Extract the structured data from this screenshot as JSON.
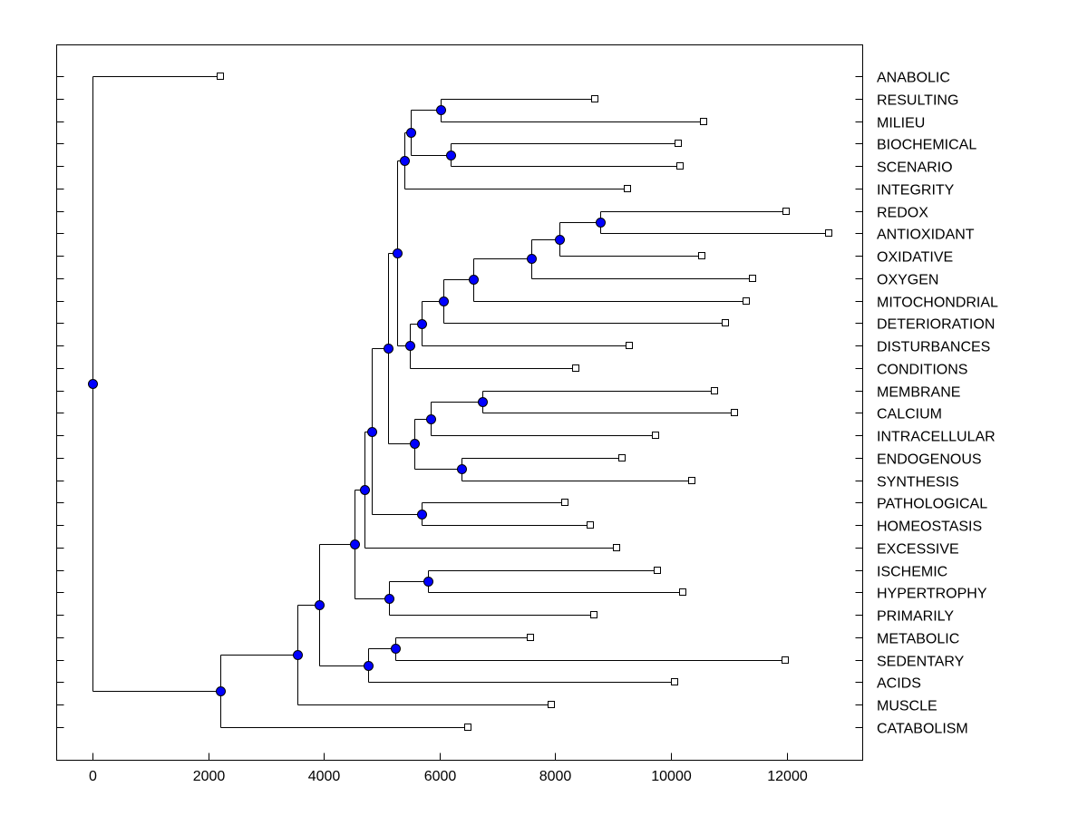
{
  "chart_data": {
    "type": "dendrogram",
    "title": "",
    "xlabel": "",
    "ylabel": "",
    "xlim": [
      -600,
      13400
    ],
    "xticks": [
      0,
      2000,
      4000,
      6000,
      8000,
      10000,
      12000
    ],
    "grid": false,
    "colors": {
      "node": "#0000ff",
      "line": "#000000",
      "leaf": "#ffffff"
    },
    "leaves": [
      "ANABOLIC",
      "RESULTING",
      "MILIEU",
      "BIOCHEMICAL",
      "SCENARIO",
      "INTEGRITY",
      "REDOX",
      "ANTIOXIDANT",
      "OXIDATIVE",
      "OXYGEN",
      "MITOCHONDRIAL",
      "DETERIORATION",
      "DISTURBANCES",
      "CONDITIONS",
      "MEMBRANE",
      "CALCIUM",
      "INTRACELLULAR",
      "ENDOGENOUS",
      "SYNTHESIS",
      "PATHOLOGICAL",
      "HOMEOSTASIS",
      "EXCESSIVE",
      "ISCHEMIC",
      "HYPERTROPHY",
      "PRIMARILY",
      "METABOLIC",
      "SEDENTARY",
      "ACIDS",
      "MUSCLE",
      "CATABOLISM"
    ],
    "tree": {
      "x": 0,
      "children": [
        {
          "leaf": "ANABOLIC",
          "x": 2205
        },
        {
          "x": 2205,
          "children": [
            {
              "x": 3543,
              "children": [
                {
                  "x": 3921,
                  "children": [
                    {
                      "x": 4535,
                      "children": [
                        {
                          "x": 4709,
                          "children": [
                            {
                              "x": 4835,
                              "children": [
                                {
                                  "x": 5102,
                                  "children": [
                                    {
                                      "x": 5260,
                                      "children": [
                                        {
                                          "x": 5386,
                                          "children": [
                                            {
                                              "x": 5496,
                                              "children": [
                                                {
                                                  "x": 6016,
                                                  "children": [
                                                    {
                                                      "leaf": "RESULTING",
                                                      "x": 8677
                                                    },
                                                    {
                                                      "leaf": "MILIEU",
                                                      "x": 10567
                                                    }
                                                  ]
                                                },
                                                {
                                                  "x": 6189,
                                                  "children": [
                                                    {
                                                      "leaf": "BIOCHEMICAL",
                                                      "x": 10126
                                                    },
                                                    {
                                                      "leaf": "SCENARIO",
                                                      "x": 10157
                                                    }
                                                  ]
                                                }
                                              ]
                                            },
                                            {
                                              "leaf": "INTEGRITY",
                                              "x": 9244
                                            }
                                          ]
                                        },
                                        {
                                          "x": 5480,
                                          "children": [
                                            {
                                              "x": 5685,
                                              "children": [
                                                {
                                                  "x": 6063,
                                                  "children": [
                                                    {
                                                      "x": 6583,
                                                      "children": [
                                                        {
                                                          "x": 7591,
                                                          "children": [
                                                            {
                                                              "x": 8079,
                                                              "children": [
                                                                {
                                                                  "x": 8772,
                                                                  "children": [
                                                                    {
                                                                      "leaf": "REDOX",
                                                                      "x": 11984
                                                                    },
                                                                    {
                                                                      "leaf": "ANTIOXIDANT",
                                                                      "x": 12724
                                                                    }
                                                                  ]
                                                                },
                                                                {
                                                                  "leaf": "OXIDATIVE",
                                                                  "x": 10535
                                                                }
                                                              ]
                                                            },
                                                            {
                                                              "leaf": "OXYGEN",
                                                              "x": 11417
                                                            }
                                                          ]
                                                        },
                                                        {
                                                          "leaf": "MITOCHONDRIAL",
                                                          "x": 11307
                                                        }
                                                      ]
                                                    },
                                                    {
                                                      "leaf": "DETERIORATION",
                                                      "x": 10945
                                                    }
                                                  ]
                                                },
                                                {
                                                  "leaf": "DISTURBANCES",
                                                  "x": 9276
                                                }
                                              ]
                                            },
                                            {
                                              "leaf": "CONDITIONS",
                                              "x": 8362
                                            }
                                          ]
                                        }
                                      ]
                                    },
                                    {
                                      "x": 5559,
                                      "children": [
                                        {
                                          "x": 5843,
                                          "children": [
                                            {
                                              "x": 6740,
                                              "children": [
                                                {
                                                  "leaf": "MEMBRANE",
                                                  "x": 10756
                                                },
                                                {
                                                  "leaf": "CALCIUM",
                                                  "x": 11102
                                                }
                                              ]
                                            },
                                            {
                                              "leaf": "INTRACELLULAR",
                                              "x": 9732
                                            }
                                          ]
                                        },
                                        {
                                          "x": 6378,
                                          "children": [
                                            {
                                              "leaf": "ENDOGENOUS",
                                              "x": 9150
                                            },
                                            {
                                              "leaf": "SYNTHESIS",
                                              "x": 10362
                                            }
                                          ]
                                        }
                                      ]
                                    }
                                  ]
                                },
                                {
                                  "x": 5685,
                                  "children": [
                                    {
                                      "leaf": "PATHOLOGICAL",
                                      "x": 8173
                                    },
                                    {
                                      "leaf": "HOMEOSTASIS",
                                      "x": 8598
                                    }
                                  ]
                                }
                              ]
                            },
                            {
                              "leaf": "EXCESSIVE",
                              "x": 9055
                            }
                          ]
                        },
                        {
                          "x": 5118,
                          "children": [
                            {
                              "x": 5795,
                              "children": [
                                {
                                  "leaf": "ISCHEMIC",
                                  "x": 9764
                                },
                                {
                                  "leaf": "HYPERTROPHY",
                                  "x": 10205
                                }
                              ]
                            },
                            {
                              "leaf": "PRIMARILY",
                              "x": 8661
                            }
                          ]
                        }
                      ]
                    },
                    {
                      "x": 4772,
                      "children": [
                        {
                          "x": 5228,
                          "children": [
                            {
                              "leaf": "METABOLIC",
                              "x": 7575
                            },
                            {
                              "leaf": "SEDENTARY",
                              "x": 11969
                            }
                          ]
                        },
                        {
                          "leaf": "ACIDS",
                          "x": 10063
                        }
                      ]
                    }
                  ]
                },
                {
                  "leaf": "MUSCLE",
                  "x": 7937
                }
              ]
            },
            {
              "leaf": "CATABOLISM",
              "x": 6488
            }
          ]
        }
      ]
    }
  }
}
